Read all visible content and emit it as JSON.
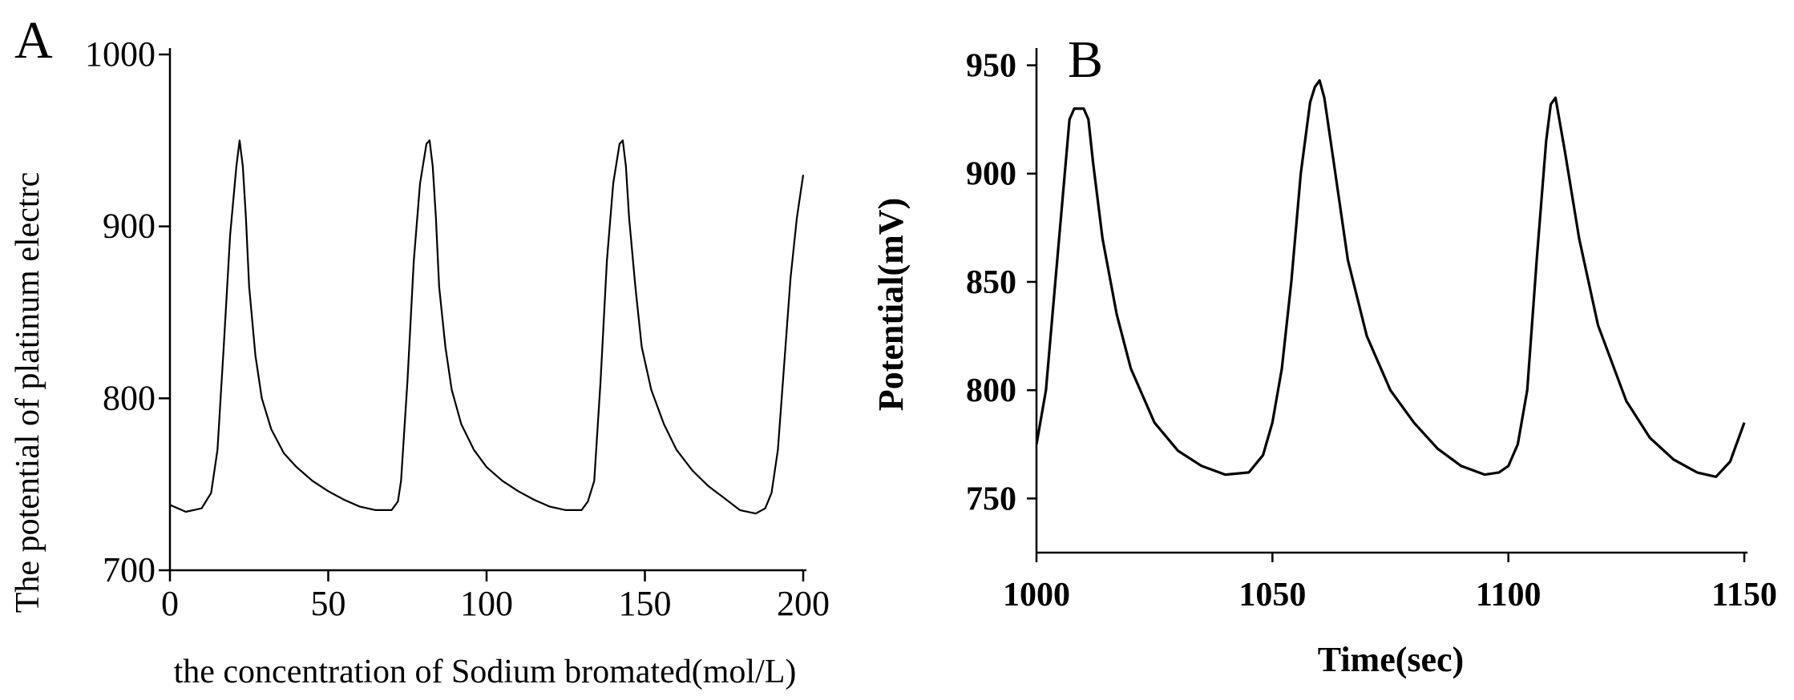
{
  "figure": {
    "panels": [
      "A",
      "B"
    ]
  },
  "chart_data": [
    {
      "panel": "A",
      "type": "line",
      "title": "",
      "xlabel": "the concentration of Sodium bromated(mol/L)",
      "ylabel": "The potential of platinum electrc",
      "xlim": [
        0,
        200
      ],
      "ylim": [
        700,
        1000
      ],
      "xticks": [
        0,
        50,
        100,
        150,
        200
      ],
      "yticks": [
        700,
        800,
        900,
        1000
      ],
      "grid": false,
      "colors": {
        "line": "#000000"
      },
      "series": [
        {
          "x": [
            0,
            5,
            10,
            13,
            15,
            17,
            19,
            21,
            22,
            23,
            24,
            25,
            27,
            29,
            32,
            36,
            40,
            45,
            50,
            55,
            60,
            65,
            70,
            72,
            73,
            75,
            77,
            79,
            81,
            82,
            83,
            84,
            85,
            87,
            89,
            92,
            96,
            100,
            105,
            110,
            115,
            120,
            125,
            130,
            132,
            134,
            136,
            138,
            140,
            142,
            143,
            144,
            145,
            147,
            149,
            152,
            156,
            160,
            165,
            170,
            175,
            180,
            185,
            188,
            190,
            192,
            194,
            196,
            198,
            200
          ],
          "y": [
            738,
            734,
            736,
            745,
            770,
            830,
            895,
            935,
            950,
            935,
            905,
            865,
            825,
            800,
            782,
            768,
            760,
            752,
            746,
            741,
            737,
            735,
            735,
            740,
            752,
            810,
            880,
            925,
            948,
            950,
            935,
            905,
            865,
            830,
            805,
            785,
            770,
            760,
            752,
            746,
            741,
            737,
            735,
            735,
            740,
            752,
            810,
            880,
            925,
            948,
            950,
            935,
            905,
            865,
            830,
            805,
            785,
            770,
            758,
            749,
            742,
            735,
            733,
            736,
            745,
            770,
            820,
            870,
            905,
            930
          ]
        }
      ]
    },
    {
      "panel": "B",
      "type": "line",
      "title": "",
      "xlabel": "Time(sec)",
      "ylabel": "Potential(mV)",
      "xlim": [
        1000,
        1150
      ],
      "ylim": [
        725,
        955
      ],
      "xticks": [
        1000,
        1050,
        1100,
        1150
      ],
      "yticks": [
        750,
        800,
        850,
        900,
        950
      ],
      "grid": false,
      "colors": {
        "line": "#000000"
      },
      "series": [
        {
          "x": [
            1000,
            1002,
            1004,
            1006,
            1007,
            1008,
            1010,
            1011,
            1012,
            1014,
            1017,
            1020,
            1025,
            1030,
            1035,
            1040,
            1045,
            1048,
            1050,
            1052,
            1054,
            1056,
            1058,
            1059,
            1060,
            1061,
            1063,
            1066,
            1070,
            1075,
            1080,
            1085,
            1090,
            1095,
            1098,
            1100,
            1102,
            1104,
            1106,
            1108,
            1109,
            1110,
            1112,
            1115,
            1119,
            1125,
            1130,
            1135,
            1140,
            1144,
            1147,
            1150
          ],
          "y": [
            775,
            800,
            850,
            900,
            925,
            930,
            930,
            925,
            905,
            870,
            835,
            810,
            785,
            772,
            765,
            761,
            762,
            770,
            785,
            810,
            850,
            900,
            933,
            940,
            943,
            935,
            905,
            860,
            825,
            800,
            785,
            773,
            765,
            761,
            762,
            765,
            775,
            800,
            860,
            915,
            932,
            935,
            910,
            870,
            830,
            795,
            778,
            768,
            762,
            760,
            767,
            785
          ]
        }
      ]
    }
  ]
}
